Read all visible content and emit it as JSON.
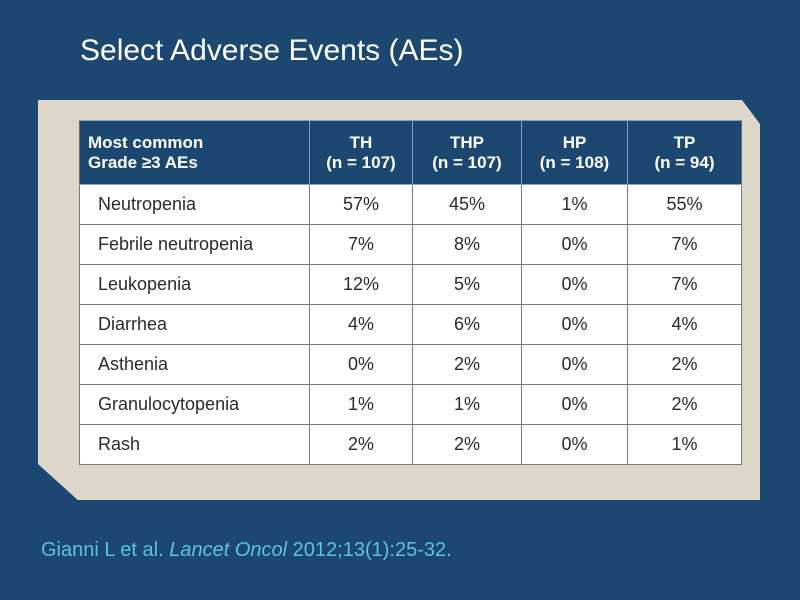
{
  "slide": {
    "title": "Select Adverse Events (AEs)"
  },
  "colors": {
    "background": "#1b4770",
    "panel": "#dcd7c9",
    "header_background": "#1b4770",
    "citation_text": "#5cc4d8"
  },
  "table": {
    "headers": [
      {
        "line1": "Most common",
        "line2": "Grade ≥3 AEs"
      },
      {
        "line1": "TH",
        "line2": "(n = 107)"
      },
      {
        "line1": "THP",
        "line2": "(n = 107)"
      },
      {
        "line1": "HP",
        "line2": "(n = 108)"
      },
      {
        "line1": "TP",
        "line2": "(n = 94)"
      }
    ],
    "rows": [
      [
        "Neutropenia",
        "57%",
        "45%",
        "1%",
        "55%"
      ],
      [
        "Febrile neutropenia",
        "7%",
        "8%",
        "0%",
        "7%"
      ],
      [
        "Leukopenia",
        "12%",
        "5%",
        "0%",
        "7%"
      ],
      [
        "Diarrhea",
        "4%",
        "6%",
        "0%",
        "4%"
      ],
      [
        "Asthenia",
        "0%",
        "2%",
        "0%",
        "2%"
      ],
      [
        "Granulocytopenia",
        "1%",
        "1%",
        "0%",
        "2%"
      ],
      [
        "Rash",
        "2%",
        "2%",
        "0%",
        "1%"
      ]
    ]
  },
  "citation": {
    "authors": "Gianni L et al.",
    "journal": "Lancet Oncol",
    "details": "2012;13(1):25-32."
  }
}
